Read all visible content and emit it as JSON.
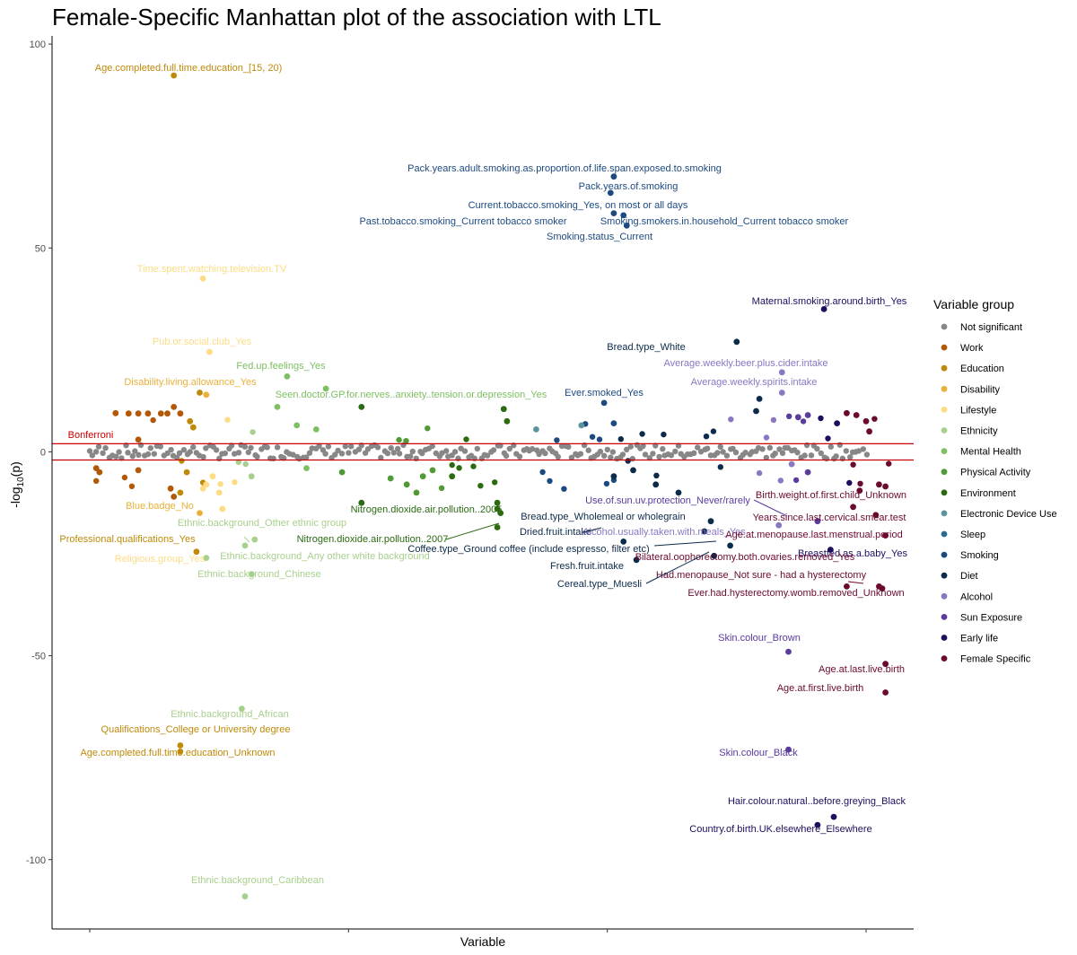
{
  "chart_data": {
    "type": "scatter",
    "title": "Female-Specific Manhattan plot of the association with LTL",
    "xlabel": "Variable",
    "ylabel": "-log10(p)",
    "ylim": [
      -117,
      102
    ],
    "yticks": [
      100,
      50,
      0,
      -50,
      -100
    ],
    "threshold": {
      "label": "Bonferroni",
      "values": [
        2,
        -2
      ],
      "color": "#cc0000"
    },
    "legend": {
      "title": "Variable group",
      "position": "right",
      "items": [
        {
          "name": "Not significant",
          "color": "#878787"
        },
        {
          "name": "Work",
          "color": "#b35806"
        },
        {
          "name": "Education",
          "color": "#bf8a0a"
        },
        {
          "name": "Disability",
          "color": "#e9b13a"
        },
        {
          "name": "Lifestyle",
          "color": "#fddc85"
        },
        {
          "name": "Ethnicity",
          "color": "#a8d08d"
        },
        {
          "name": "Mental Health",
          "color": "#7fbf63"
        },
        {
          "name": "Physical Activity",
          "color": "#4f9a34"
        },
        {
          "name": "Environment",
          "color": "#2a6b12"
        },
        {
          "name": "Electronic Device Use",
          "color": "#5c949e"
        },
        {
          "name": "Sleep",
          "color": "#2b6a8f"
        },
        {
          "name": "Smoking",
          "color": "#1c4a80"
        },
        {
          "name": "Diet",
          "color": "#0c2a4a"
        },
        {
          "name": "Alcohol",
          "color": "#8a77c2"
        },
        {
          "name": "Sun Exposure",
          "color": "#5a3b9e"
        },
        {
          "name": "Early life",
          "color": "#1f0d5e"
        },
        {
          "name": "Female Specific",
          "color": "#6b0a30"
        }
      ]
    },
    "group_ranges": {
      "Work": [
        6,
        24
      ],
      "Education": [
        24,
        36
      ],
      "Disability": [
        36,
        42
      ],
      "Lifestyle": [
        42,
        48
      ],
      "Ethnicity": [
        48,
        58
      ],
      "Mental Health": [
        58,
        78
      ],
      "Physical Activity": [
        78,
        110
      ],
      "Environment": [
        110,
        125
      ],
      "Electronic Device Use": [
        125,
        140
      ],
      "Sleep": [
        140,
        148
      ],
      "Smoking": [
        148,
        160
      ],
      "Diet": [
        160,
        188
      ],
      "Alcohol": [
        188,
        210
      ],
      "Sun Exposure": [
        210,
        224
      ],
      "Early life": [
        224,
        240
      ],
      "Female Specific": [
        240,
        268
      ]
    },
    "x_range": [
      0,
      268
    ],
    "points": [
      {
        "g": "Education",
        "x": 26,
        "y": 92.3
      },
      {
        "g": "Lifestyle",
        "x": 35,
        "y": 42.5
      },
      {
        "g": "Lifestyle",
        "x": 37,
        "y": 24.5
      },
      {
        "g": "Education",
        "x": 34,
        "y": 14.5
      },
      {
        "g": "Disability",
        "x": 36,
        "y": 14
      },
      {
        "g": "Work",
        "x": 8,
        "y": 9.5
      },
      {
        "g": "Work",
        "x": 12,
        "y": 9.4
      },
      {
        "g": "Work",
        "x": 15,
        "y": 9.4
      },
      {
        "g": "Work",
        "x": 18,
        "y": 9.4
      },
      {
        "g": "Work",
        "x": 22,
        "y": 9.4
      },
      {
        "g": "Work",
        "x": 24,
        "y": 9.4
      },
      {
        "g": "Work",
        "x": 26,
        "y": 11
      },
      {
        "g": "Work",
        "x": 28,
        "y": 9.4
      },
      {
        "g": "Education",
        "x": 31,
        "y": 7.5
      },
      {
        "g": "Education",
        "x": 32,
        "y": 6
      },
      {
        "g": "Work",
        "x": 15,
        "y": 3
      },
      {
        "g": "Mental Health",
        "x": 61,
        "y": 18.5
      },
      {
        "g": "Mental Health",
        "x": 73,
        "y": 15.5
      },
      {
        "g": "Mental Health",
        "x": 58,
        "y": 11
      },
      {
        "g": "Mental Health",
        "x": 64,
        "y": 6.5
      },
      {
        "g": "Mental Health",
        "x": 70,
        "y": 5.5
      },
      {
        "g": "Environment",
        "x": 84,
        "y": 11
      },
      {
        "g": "Environment",
        "x": 128,
        "y": 10.5
      },
      {
        "g": "Environment",
        "x": 129,
        "y": 7.5
      },
      {
        "g": "Smoking",
        "x": 162,
        "y": 67.5
      },
      {
        "g": "Smoking",
        "x": 161,
        "y": 63.5
      },
      {
        "g": "Smoking",
        "x": 162,
        "y": 58.5
      },
      {
        "g": "Smoking",
        "x": 165,
        "y": 58
      },
      {
        "g": "Smoking",
        "x": 166,
        "y": 55.5
      },
      {
        "g": "Diet",
        "x": 200,
        "y": 27
      },
      {
        "g": "Early life",
        "x": 227,
        "y": 35
      },
      {
        "g": "Alcohol",
        "x": 214,
        "y": 19.5
      },
      {
        "g": "Alcohol",
        "x": 214,
        "y": 14.5
      },
      {
        "g": "Smoking",
        "x": 159,
        "y": 12
      },
      {
        "g": "Diet",
        "x": 207,
        "y": 13
      },
      {
        "g": "Diet",
        "x": 206,
        "y": 10
      },
      {
        "g": "Smoking",
        "x": 162,
        "y": 7
      },
      {
        "g": "Electronic Device Use",
        "x": 152,
        "y": 6.5
      },
      {
        "g": "Electronic Device Use",
        "x": 138,
        "y": 5.5
      },
      {
        "g": "Sun Exposure",
        "x": 219,
        "y": 8.5
      },
      {
        "g": "Sun Exposure",
        "x": 222,
        "y": 9
      },
      {
        "g": "Early life",
        "x": 231,
        "y": 7
      },
      {
        "g": "Female Specific",
        "x": 234,
        "y": 9.5
      },
      {
        "g": "Female Specific",
        "x": 237,
        "y": 9
      },
      {
        "g": "Female Specific",
        "x": 240,
        "y": 7.5
      },
      {
        "g": "Female Specific",
        "x": 241,
        "y": 5
      },
      {
        "g": "Work",
        "x": 2,
        "y": -4
      },
      {
        "g": "Work",
        "x": 3,
        "y": -5
      },
      {
        "g": "Work",
        "x": 15,
        "y": -4.5
      },
      {
        "g": "Work",
        "x": 25,
        "y": -9
      },
      {
        "g": "Work",
        "x": 26,
        "y": -11
      },
      {
        "g": "Education",
        "x": 28,
        "y": -10
      },
      {
        "g": "Education",
        "x": 30,
        "y": -5
      },
      {
        "g": "Lifestyle",
        "x": 36,
        "y": -8
      },
      {
        "g": "Lifestyle",
        "x": 38,
        "y": -6
      },
      {
        "g": "Lifestyle",
        "x": 40,
        "y": -10
      },
      {
        "g": "Lifestyle",
        "x": 41,
        "y": -14
      },
      {
        "g": "Disability",
        "x": 34,
        "y": -15
      },
      {
        "g": "Lifestyle",
        "x": 35,
        "y": -9
      },
      {
        "g": "Ethnicity",
        "x": 50,
        "y": -6
      },
      {
        "g": "Mental Health",
        "x": 67,
        "y": -4
      },
      {
        "g": "Physical Activity",
        "x": 78,
        "y": -5
      },
      {
        "g": "Physical Activity",
        "x": 93,
        "y": -6.5
      },
      {
        "g": "Physical Activity",
        "x": 98,
        "y": -8
      },
      {
        "g": "Physical Activity",
        "x": 101,
        "y": -10
      },
      {
        "g": "Physical Activity",
        "x": 103,
        "y": -6
      },
      {
        "g": "Physical Activity",
        "x": 106,
        "y": -4.5
      },
      {
        "g": "Environment",
        "x": 84,
        "y": -12.5
      },
      {
        "g": "Environment",
        "x": 112,
        "y": -6
      },
      {
        "g": "Environment",
        "x": 126,
        "y": -12.5
      },
      {
        "g": "Environment",
        "x": 126,
        "y": -14
      },
      {
        "g": "Environment",
        "x": 127,
        "y": -15
      },
      {
        "g": "Environment",
        "x": 126,
        "y": -18.5
      },
      {
        "g": "Education",
        "x": 33,
        "y": -24.5
      },
      {
        "g": "Ethnicity",
        "x": 48,
        "y": -23
      },
      {
        "g": "Ethnicity",
        "x": 51,
        "y": -21.5
      },
      {
        "g": "Ethnicity",
        "x": 50,
        "y": -30
      },
      {
        "g": "Ethnicity",
        "x": 36,
        "y": -26
      },
      {
        "g": "Diet",
        "x": 162,
        "y": -6
      },
      {
        "g": "Diet",
        "x": 168,
        "y": -4.5
      },
      {
        "g": "Diet",
        "x": 175,
        "y": -8
      },
      {
        "g": "Diet",
        "x": 182,
        "y": -10
      },
      {
        "g": "Diet",
        "x": 192,
        "y": -17
      },
      {
        "g": "Diet",
        "x": 190,
        "y": -19.5
      },
      {
        "g": "Diet",
        "x": 169,
        "y": -26.5
      },
      {
        "g": "Diet",
        "x": 165,
        "y": -22
      },
      {
        "g": "Diet",
        "x": 198,
        "y": -23
      },
      {
        "g": "Diet",
        "x": 193,
        "y": -25.5
      },
      {
        "g": "Alcohol",
        "x": 213,
        "y": -18
      },
      {
        "g": "Alcohol",
        "x": 217,
        "y": -3
      },
      {
        "g": "Sun Exposure",
        "x": 222,
        "y": -5
      },
      {
        "g": "Sun Exposure",
        "x": 225,
        "y": -17
      },
      {
        "g": "Sun Exposure",
        "x": 216,
        "y": -49
      },
      {
        "g": "Sun Exposure",
        "x": 216,
        "y": -73
      },
      {
        "g": "Early life",
        "x": 225,
        "y": -91.5
      },
      {
        "g": "Early life",
        "x": 230,
        "y": -89.5
      },
      {
        "g": "Early life",
        "x": 229,
        "y": -24
      },
      {
        "g": "Female Specific",
        "x": 238,
        "y": -9.5
      },
      {
        "g": "Female Specific",
        "x": 236,
        "y": -13.5
      },
      {
        "g": "Female Specific",
        "x": 243,
        "y": -15.5
      },
      {
        "g": "Female Specific",
        "x": 246,
        "y": -20.5
      },
      {
        "g": "Female Specific",
        "x": 234,
        "y": -33
      },
      {
        "g": "Female Specific",
        "x": 244,
        "y": -33
      },
      {
        "g": "Female Specific",
        "x": 245,
        "y": -33.5
      },
      {
        "g": "Female Specific",
        "x": 246,
        "y": -52
      },
      {
        "g": "Female Specific",
        "x": 246,
        "y": -59
      },
      {
        "g": "Female Specific",
        "x": 244,
        "y": -8
      },
      {
        "g": "Female Specific",
        "x": 246,
        "y": -8.5
      },
      {
        "g": "Education",
        "x": 28,
        "y": -72
      },
      {
        "g": "Education",
        "x": 28,
        "y": -73.5
      },
      {
        "g": "Ethnicity",
        "x": 47,
        "y": -63
      },
      {
        "g": "Ethnicity",
        "x": 48,
        "y": -109
      }
    ],
    "annotations": [
      {
        "text": "Age.completed.full.time.education_[15, 20)",
        "g": "Education"
      },
      {
        "text": "Pack.years.adult.smoking.as.proportion.of.life.span.exposed.to.smoking",
        "g": "Smoking"
      },
      {
        "text": "Pack.years.of.smoking",
        "g": "Smoking"
      },
      {
        "text": "Current.tobacco.smoking_Yes, on most or all days",
        "g": "Smoking"
      },
      {
        "text": "Past.tobacco.smoking_Current tobacco smoker",
        "g": "Smoking"
      },
      {
        "text": "Smoking.smokers.in.household_Current tobacco smoker",
        "g": "Smoking"
      },
      {
        "text": "Smoking.status_Current",
        "g": "Smoking"
      },
      {
        "text": "Time.spent.watching.television.TV",
        "g": "Lifestyle"
      },
      {
        "text": "Maternal.smoking.around.birth_Yes",
        "g": "Early life"
      },
      {
        "text": "Pub.or.social.club_Yes",
        "g": "Lifestyle"
      },
      {
        "text": "Bread.type_White",
        "g": "Diet"
      },
      {
        "text": "Average.weekly.beer.plus.cider.intake",
        "g": "Alcohol"
      },
      {
        "text": "Fed.up.feelings_Yes",
        "g": "Mental Health"
      },
      {
        "text": "Disability.living.allowance_Yes",
        "g": "Disability"
      },
      {
        "text": "Average.weekly.spirits.intake",
        "g": "Alcohol"
      },
      {
        "text": "Ever.smoked_Yes",
        "g": "Smoking"
      },
      {
        "text": "Seen.doctor.GP.for.nerves..anxiety..tension.or.depression_Yes",
        "g": "Mental Health"
      },
      {
        "text": "Bonferroni",
        "g": "threshold"
      },
      {
        "text": "Birth.weight.of.first.child_Unknown",
        "g": "Female Specific"
      },
      {
        "text": "Use.of.sun.uv.protection_Never/rarely",
        "g": "Sun Exposure"
      },
      {
        "text": "Nitrogen.dioxide.air.pollution..2005",
        "g": "Environment"
      },
      {
        "text": "Blue.badge_No",
        "g": "Disability"
      },
      {
        "text": "Bread.type_Wholemeal or wholegrain",
        "g": "Diet"
      },
      {
        "text": "Years.since.last.cervical.smear.test",
        "g": "Female Specific"
      },
      {
        "text": "Ethnic.background_Other ethnic group",
        "g": "Ethnicity"
      },
      {
        "text": "Dried.fruit.intake",
        "g": "Diet"
      },
      {
        "text": "Alcohol.usually.taken.with.meals_Yes",
        "g": "Alcohol"
      },
      {
        "text": "Age.at.menopause.last.menstrual.period",
        "g": "Female Specific"
      },
      {
        "text": "Professional.qualifications_Yes",
        "g": "Education"
      },
      {
        "text": "Nitrogen.dioxide.air.pollution..2007",
        "g": "Environment"
      },
      {
        "text": "Coffee.type_Ground coffee (include espresso, filter etc)",
        "g": "Diet"
      },
      {
        "text": "Ethnic.background_Any other white background",
        "g": "Ethnicity"
      },
      {
        "text": "Breastfed.as.a.baby_Yes",
        "g": "Early life"
      },
      {
        "text": "Religious.group_Yes",
        "g": "Lifestyle"
      },
      {
        "text": "Bilateral.oophorectomy.both.ovaries.removed_Yes",
        "g": "Female Specific"
      },
      {
        "text": "Fresh.fruit.intake",
        "g": "Diet"
      },
      {
        "text": "Ethnic.background_Chinese",
        "g": "Ethnicity"
      },
      {
        "text": "Had.menopause_Not sure - had a hysterectomy",
        "g": "Female Specific"
      },
      {
        "text": "Cereal.type_Muesli",
        "g": "Diet"
      },
      {
        "text": "Ever.had.hysterectomy.womb.removed_Unknown",
        "g": "Female Specific"
      },
      {
        "text": "Skin.colour_Brown",
        "g": "Sun Exposure"
      },
      {
        "text": "Age.at.last.live.birth",
        "g": "Female Specific"
      },
      {
        "text": "Age.at.first.live.birth",
        "g": "Female Specific"
      },
      {
        "text": "Ethnic.background_African",
        "g": "Ethnicity"
      },
      {
        "text": "Qualifications_College or University degree",
        "g": "Education"
      },
      {
        "text": "Age.completed.full.time.education_Unknown",
        "g": "Education"
      },
      {
        "text": "Skin.colour_Black",
        "g": "Sun Exposure"
      },
      {
        "text": "Hair.colour.natural..before.greying_Black",
        "g": "Early life"
      },
      {
        "text": "Country.of.birth.UK.elsewhere_Elsewhere",
        "g": "Early life"
      },
      {
        "text": "Ethnic.background_Caribbean",
        "g": "Ethnicity"
      }
    ]
  }
}
